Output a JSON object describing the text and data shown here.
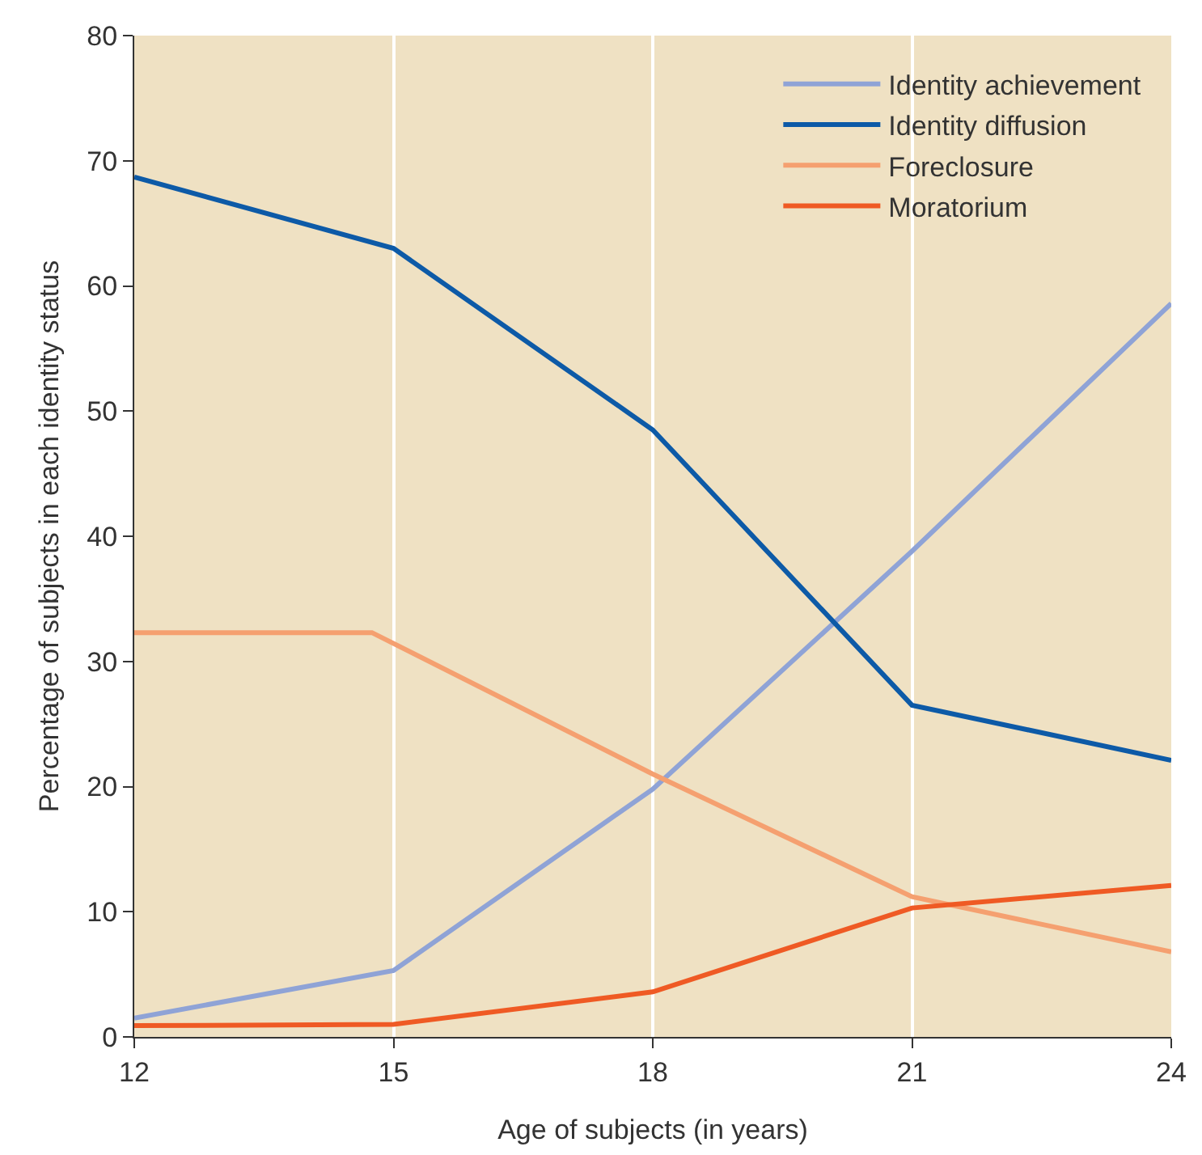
{
  "chart_data": {
    "type": "line",
    "xlabel": "Age of subjects (in years)",
    "ylabel": "Percentage of subjects in each identity status",
    "x": [
      12,
      15,
      18,
      21,
      24
    ],
    "series": [
      {
        "name": "Identity achievement",
        "color": "#8fa3d6",
        "values": [
          1.5,
          5.3,
          19.8,
          38.8,
          58.6
        ]
      },
      {
        "name": "Identity diffusion",
        "color": "#0d5aa7",
        "values": [
          68.7,
          63.0,
          48.5,
          26.5,
          22.1
        ]
      },
      {
        "name": "Foreclosure",
        "color": "#f5a070",
        "x": [
          12,
          14.75,
          18,
          21,
          24
        ],
        "values": [
          32.3,
          32.3,
          21.0,
          11.2,
          6.8
        ]
      },
      {
        "name": "Moratorium",
        "color": "#ef5a24",
        "values": [
          0.9,
          1.0,
          3.6,
          10.3,
          12.1
        ]
      }
    ],
    "xlim": [
      12,
      24
    ],
    "xticks": [
      12,
      15,
      18,
      21,
      24
    ],
    "ylim": [
      0,
      80
    ],
    "yticks": [
      0,
      10,
      20,
      30,
      40,
      50,
      60,
      70,
      80
    ],
    "grid": "x",
    "legend": "top right",
    "marker": "none",
    "line_style": "solid"
  }
}
